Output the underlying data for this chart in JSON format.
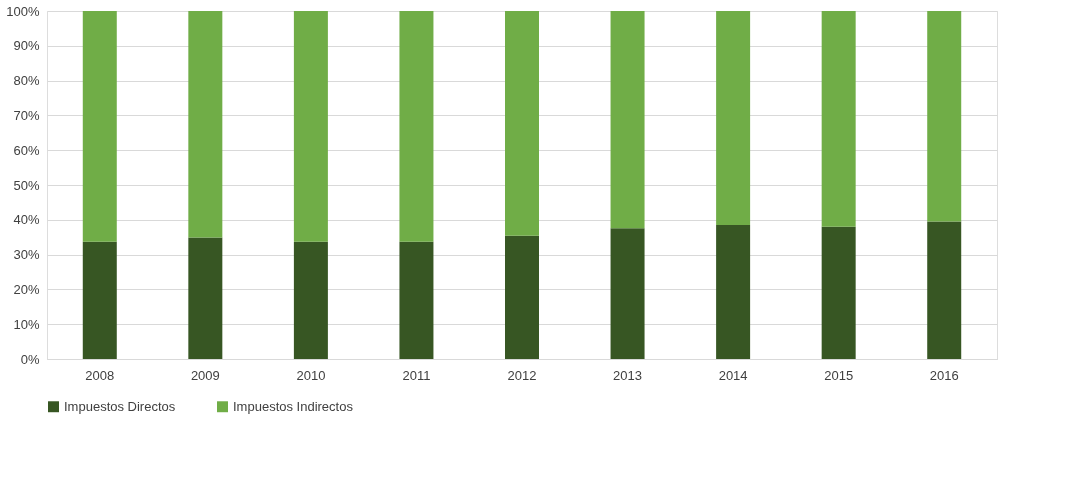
{
  "chart_data": {
    "type": "bar",
    "stacked": true,
    "categories": [
      "2008",
      "2009",
      "2010",
      "2011",
      "2012",
      "2013",
      "2014",
      "2015",
      "2016"
    ],
    "series": [
      {
        "name": "Impuestos Directos",
        "color": "#375623",
        "values": [
          33.7,
          34.9,
          33.7,
          33.7,
          35.4,
          37.6,
          38.5,
          38.0,
          39.5
        ]
      },
      {
        "name": "Impuestos Indirectos",
        "color": "#70ad47",
        "values": [
          66.3,
          65.1,
          66.3,
          66.3,
          64.6,
          62.4,
          61.5,
          62.0,
          60.5
        ]
      }
    ],
    "ylim": [
      0,
      100
    ],
    "yticks": [
      {
        "value": 0,
        "label": "0%"
      },
      {
        "value": 10,
        "label": "10%"
      },
      {
        "value": 20,
        "label": "20%"
      },
      {
        "value": 30,
        "label": "30%"
      },
      {
        "value": 40,
        "label": "40%"
      },
      {
        "value": 50,
        "label": "50%"
      },
      {
        "value": 60,
        "label": "60%"
      },
      {
        "value": 70,
        "label": "70%"
      },
      {
        "value": 80,
        "label": "80%"
      },
      {
        "value": 90,
        "label": "90%"
      },
      {
        "value": 100,
        "label": "100%"
      }
    ],
    "grid": "y",
    "legend": "bottom"
  }
}
